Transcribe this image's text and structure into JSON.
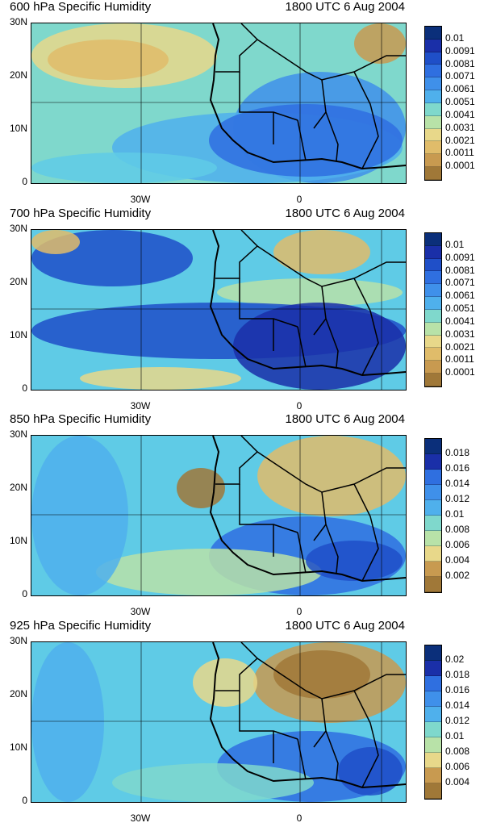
{
  "panels": [
    {
      "title": "600 hPa Specific Humidity",
      "time": "1800 UTC 6 Aug 2004",
      "lat_labels": [
        "30N",
        "20N",
        "10N",
        "0"
      ],
      "lon_labels": [
        "30W",
        "0"
      ],
      "colorbar": [
        "0.01",
        "0.0091",
        "0.0081",
        "0.0071",
        "0.0061",
        "0.0051",
        "0.0041",
        "0.0031",
        "0.0021",
        "0.0011",
        "0.0001"
      ]
    },
    {
      "title": "700 hPa Specific Humidity",
      "time": "1800 UTC 6 Aug 2004",
      "lat_labels": [
        "30N",
        "20N",
        "10N",
        "0"
      ],
      "lon_labels": [
        "30W",
        "0"
      ],
      "colorbar": [
        "0.01",
        "0.0091",
        "0.0081",
        "0.0071",
        "0.0061",
        "0.0051",
        "0.0041",
        "0.0031",
        "0.0021",
        "0.0011",
        "0.0001"
      ]
    },
    {
      "title": "850 hPa Specific Humidity",
      "time": "1800 UTC 6 Aug 2004",
      "lat_labels": [
        "30N",
        "20N",
        "10N",
        "0"
      ],
      "lon_labels": [
        "30W",
        "0"
      ],
      "colorbar": [
        "0.018",
        "0.016",
        "0.014",
        "0.012",
        "0.01",
        "0.008",
        "0.006",
        "0.004",
        "0.002"
      ]
    },
    {
      "title": "925 hPa Specific Humidity",
      "time": "1800 UTC 6 Aug 2004",
      "lat_labels": [
        "30N",
        "20N",
        "10N",
        "0"
      ],
      "lon_labels": [
        "30W",
        "0"
      ],
      "colorbar": [
        "0.02",
        "0.018",
        "0.016",
        "0.014",
        "0.012",
        "0.01",
        "0.008",
        "0.006",
        "0.004"
      ]
    }
  ],
  "colors": {
    "palette": [
      "#0b2f7a",
      "#1a2fa8",
      "#1f4fc8",
      "#2f6fe0",
      "#3f90ea",
      "#4fb0ec",
      "#5fcbe6",
      "#7fd8cc",
      "#b8e2a8",
      "#e8d88a",
      "#e0bc6a",
      "#c89a50",
      "#a07838"
    ]
  }
}
